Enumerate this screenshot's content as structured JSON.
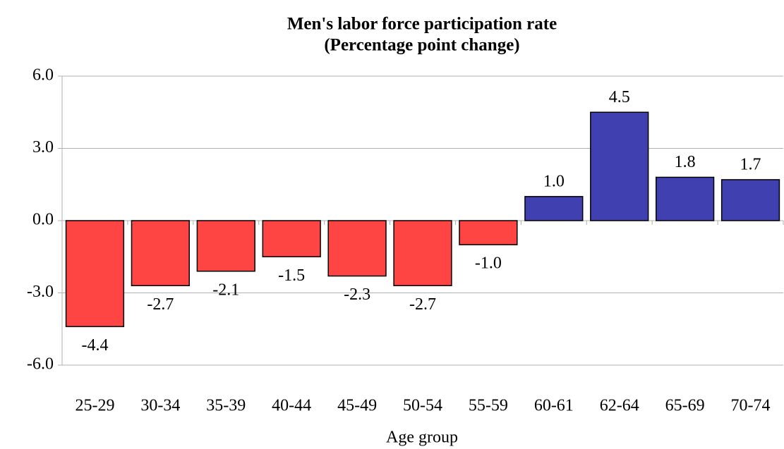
{
  "chart_data": {
    "type": "bar",
    "title": [
      "Men's labor force participation rate",
      "(Percentage point change)"
    ],
    "x_label": "Age group",
    "categories": [
      "25-29",
      "30-34",
      "35-39",
      "40-44",
      "45-49",
      "50-54",
      "55-59",
      "60-61",
      "62-64",
      "65-69",
      "70-74"
    ],
    "values": [
      -4.4,
      -2.7,
      -2.1,
      -1.5,
      -2.3,
      -2.7,
      -1.0,
      1.0,
      4.5,
      1.8,
      1.7
    ],
    "value_labels": [
      "-4.4",
      "-2.7",
      "-2.1",
      "-1.5",
      "-2.3",
      "-2.7",
      "-1.0",
      "1.0",
      "4.5",
      "1.8",
      "1.7"
    ],
    "negative_color": "#ff4444",
    "positive_color": "#4040b0",
    "ylim": [
      -6,
      6
    ],
    "yticks": [
      {
        "value": -6,
        "label": "-6.0"
      },
      {
        "value": -3,
        "label": "-3.0"
      },
      {
        "value": 0,
        "label": "0.0"
      },
      {
        "value": 3,
        "label": "3.0"
      },
      {
        "value": 6,
        "label": "6.0"
      }
    ],
    "grid": true
  }
}
